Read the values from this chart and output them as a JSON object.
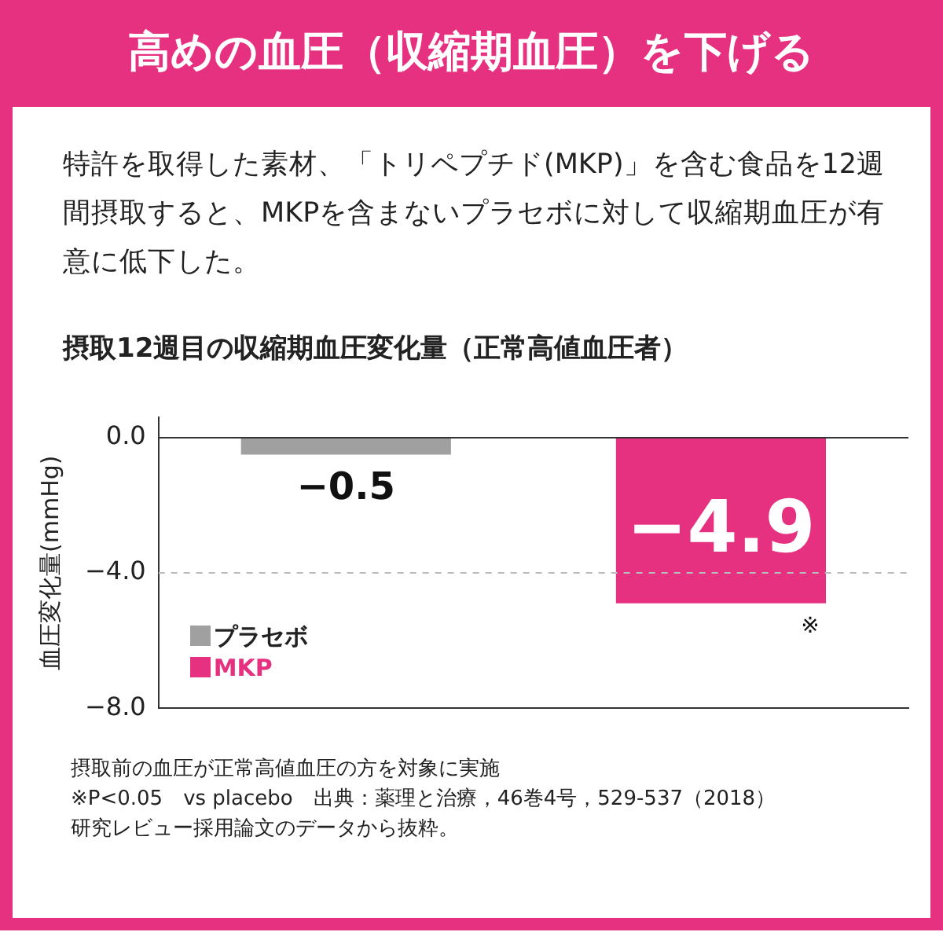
{
  "chart_data": {
    "type": "bar",
    "title": "高めの血圧（収縮期血圧）を下げる",
    "subtitle": "特許を取得した素材、「トリペプチド(MKP)」を含む食品を12週間摂取すると、MKPを含まないプラセボに対して収縮期血圧が有意に低下した。",
    "ylabel": "血圧変化量(mmHg)",
    "categories": [
      null,
      null
    ],
    "series": [
      {
        "name": "プラセボ",
        "color": "#a0a0a0",
        "values": [
          -0.5,
          null
        ],
        "value_labels": [
          "−0.5",
          null
        ]
      },
      {
        "name": "MKP",
        "color": "#e5317f",
        "values": [
          null,
          -4.9
        ],
        "value_labels": [
          null,
          "−4.9"
        ]
      }
    ],
    "ylim": [
      -8,
      0.6
    ],
    "yticks": [
      {
        "value": 0,
        "label": "0.0"
      },
      {
        "value": -4,
        "label": "−4.0"
      },
      {
        "value": -8,
        "label": "−8.0"
      }
    ],
    "ref_lines": [
      {
        "axis": "y",
        "value": 0,
        "color": "#333333",
        "line_style": "solid"
      },
      {
        "axis": "y",
        "value": -4,
        "color": "#bbbbbb",
        "line_style": "dashed"
      }
    ],
    "legend": "bottom left",
    "grid": false,
    "annotations": [
      "摂取12週目の収縮期血圧変化量（正常高値血圧者）",
      {
        "text": "※",
        "y": -4.9
      },
      "摂取前の血圧が正常高値血圧の方を対象に実施",
      "※P<0.05　vs placebo　出典：薬理と治療，46巻4号，529-537（2018）",
      "研究レビュー採用論文のデータから抜粋。"
    ]
  }
}
